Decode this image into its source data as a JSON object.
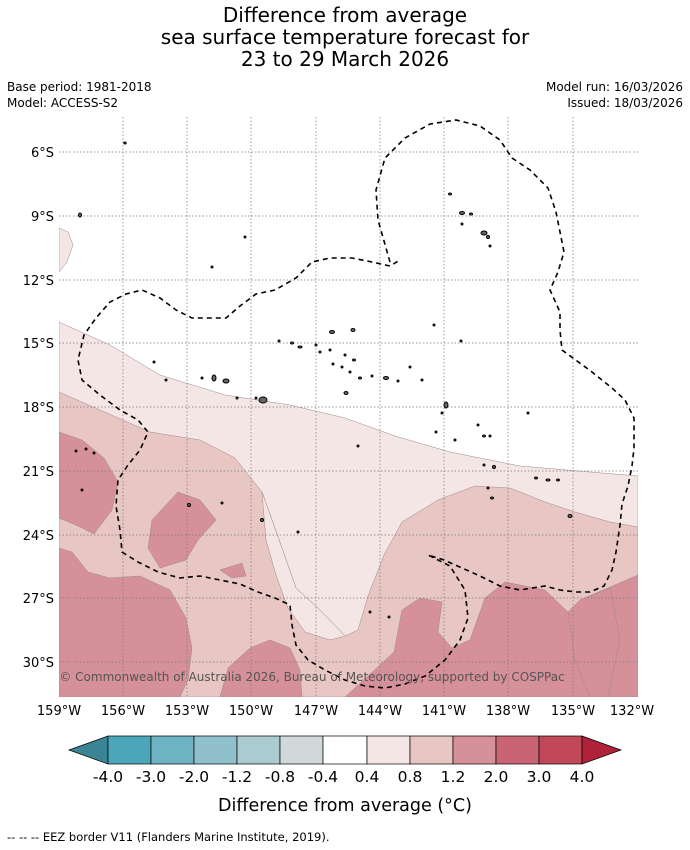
{
  "header": {
    "title_line1": "Difference from average",
    "title_line2": "sea surface temperature forecast for",
    "title_line3": "23 to 29 March 2026",
    "base_period": "Base period: 1981-2018",
    "model": "Model: ACCESS-S2",
    "model_run": "Model run: 16/03/2026",
    "issued": "Issued: 18/03/2026"
  },
  "map": {
    "lat_labels": [
      "6°S",
      "9°S",
      "12°S",
      "15°S",
      "18°S",
      "21°S",
      "24°S",
      "27°S",
      "30°S"
    ],
    "lon_labels": [
      "159°W",
      "156°W",
      "153°W",
      "150°W",
      "147°W",
      "144°W",
      "141°W",
      "138°W",
      "135°W",
      "132°W"
    ],
    "copyright": "© Commonwealth of Australia 2026, Bureau of Meteorology, supported by COSPPac",
    "colors": {
      "ocean_neutral": "#ffffff",
      "band_0_4_0_8": "#f5e6e6",
      "band_0_8_1_2": "#e8c6c4",
      "band_1_2_2_0": "#d6909a",
      "band_2_0_3_0": "#c86474"
    }
  },
  "colorbar": {
    "tick_labels": [
      "-4.0",
      "-3.0",
      "-2.0",
      "-1.2",
      "-0.8",
      "-0.4",
      "0.4",
      "0.8",
      "1.2",
      "2.0",
      "3.0",
      "4.0"
    ],
    "colors": [
      "#3b8495",
      "#4aa6b8",
      "#6eb3c4",
      "#90c0cc",
      "#aacbd0",
      "#d0d8da",
      "#ffffff",
      "#f5e6e6",
      "#e8c6c4",
      "#d6909a",
      "#c86474",
      "#c04858",
      "#b0223a"
    ],
    "title": "Difference from average (°C)"
  },
  "footer": {
    "eez_legend": "--  --  -- EEZ border V11 (Flanders Marine Institute, 2019)."
  }
}
